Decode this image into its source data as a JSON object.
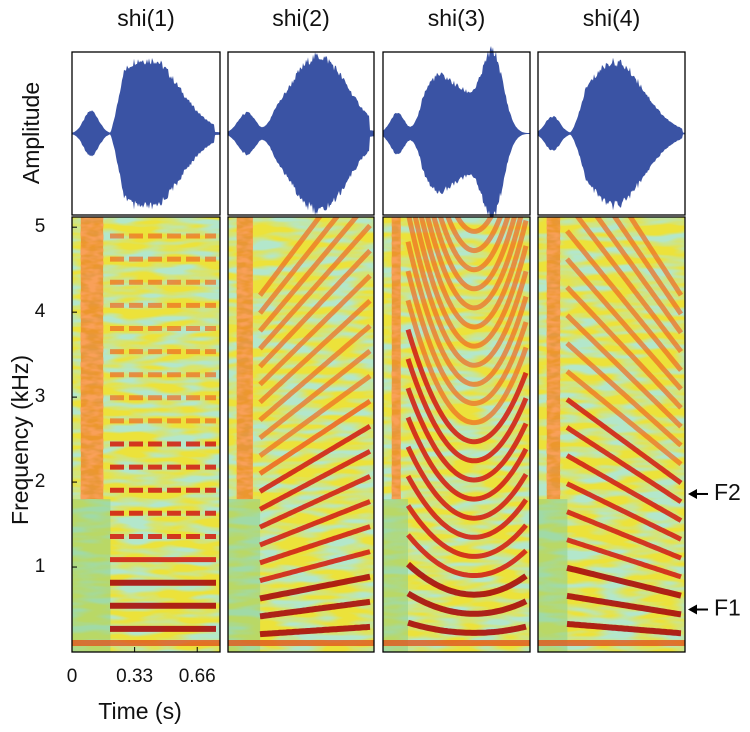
{
  "chart_data": {
    "type": "spectrogram",
    "titles": [
      "shi(1)",
      "shi(2)",
      "shi(3)",
      "shi(4)"
    ],
    "waveform_ylabel": "Amplitude",
    "ylabel": "Frequency (kHz)",
    "xlabel": "Time (s)",
    "ylim": [
      0,
      5.12
    ],
    "yticks": [
      1,
      2,
      3,
      4,
      5
    ],
    "xlim": [
      0,
      0.78
    ],
    "xticks": [
      0,
      0.33,
      0.66
    ],
    "waveform_color": "#3a53a4",
    "annotations": [
      {
        "text": "F2",
        "y": 1.86
      },
      {
        "text": "F1",
        "y": 0.5
      }
    ]
  }
}
